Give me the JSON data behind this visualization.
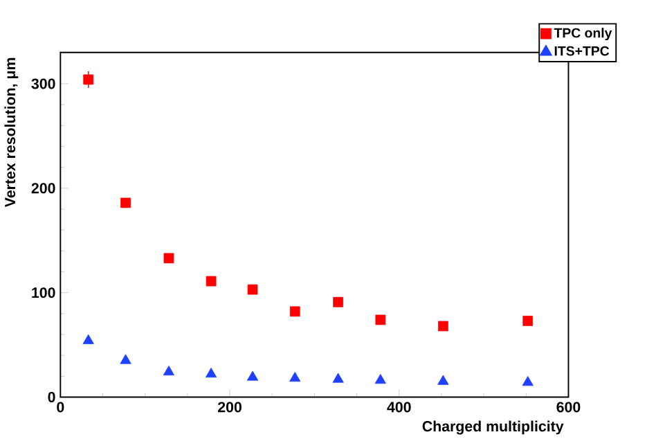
{
  "chart_data": {
    "type": "scatter",
    "xlabel": "Charged multiplicity",
    "ylabel": "Vertex resolution, μm",
    "xlim": [
      0,
      600
    ],
    "ylim": [
      0,
      330
    ],
    "xticks": [
      0,
      200,
      400,
      600
    ],
    "yticks": [
      0,
      100,
      200,
      300
    ],
    "grid": false,
    "legend": "top right",
    "series": [
      {
        "name": "TPC only",
        "color": "#ff0000",
        "marker": "square",
        "x": [
          33,
          77,
          128,
          178,
          227,
          277,
          328,
          378,
          452,
          552
        ],
        "values": [
          304,
          186,
          133,
          111,
          103,
          82,
          91,
          74,
          68,
          73
        ],
        "errors": [
          8,
          4,
          4,
          4,
          4,
          4,
          3,
          4,
          2,
          2
        ]
      },
      {
        "name": "ITS+TPC",
        "color": "#2040ff",
        "marker": "triangle",
        "x": [
          33,
          77,
          128,
          178,
          227,
          277,
          328,
          378,
          452,
          552
        ],
        "values": [
          54,
          35,
          24,
          22,
          19,
          18,
          17,
          16,
          15,
          14
        ]
      }
    ]
  }
}
